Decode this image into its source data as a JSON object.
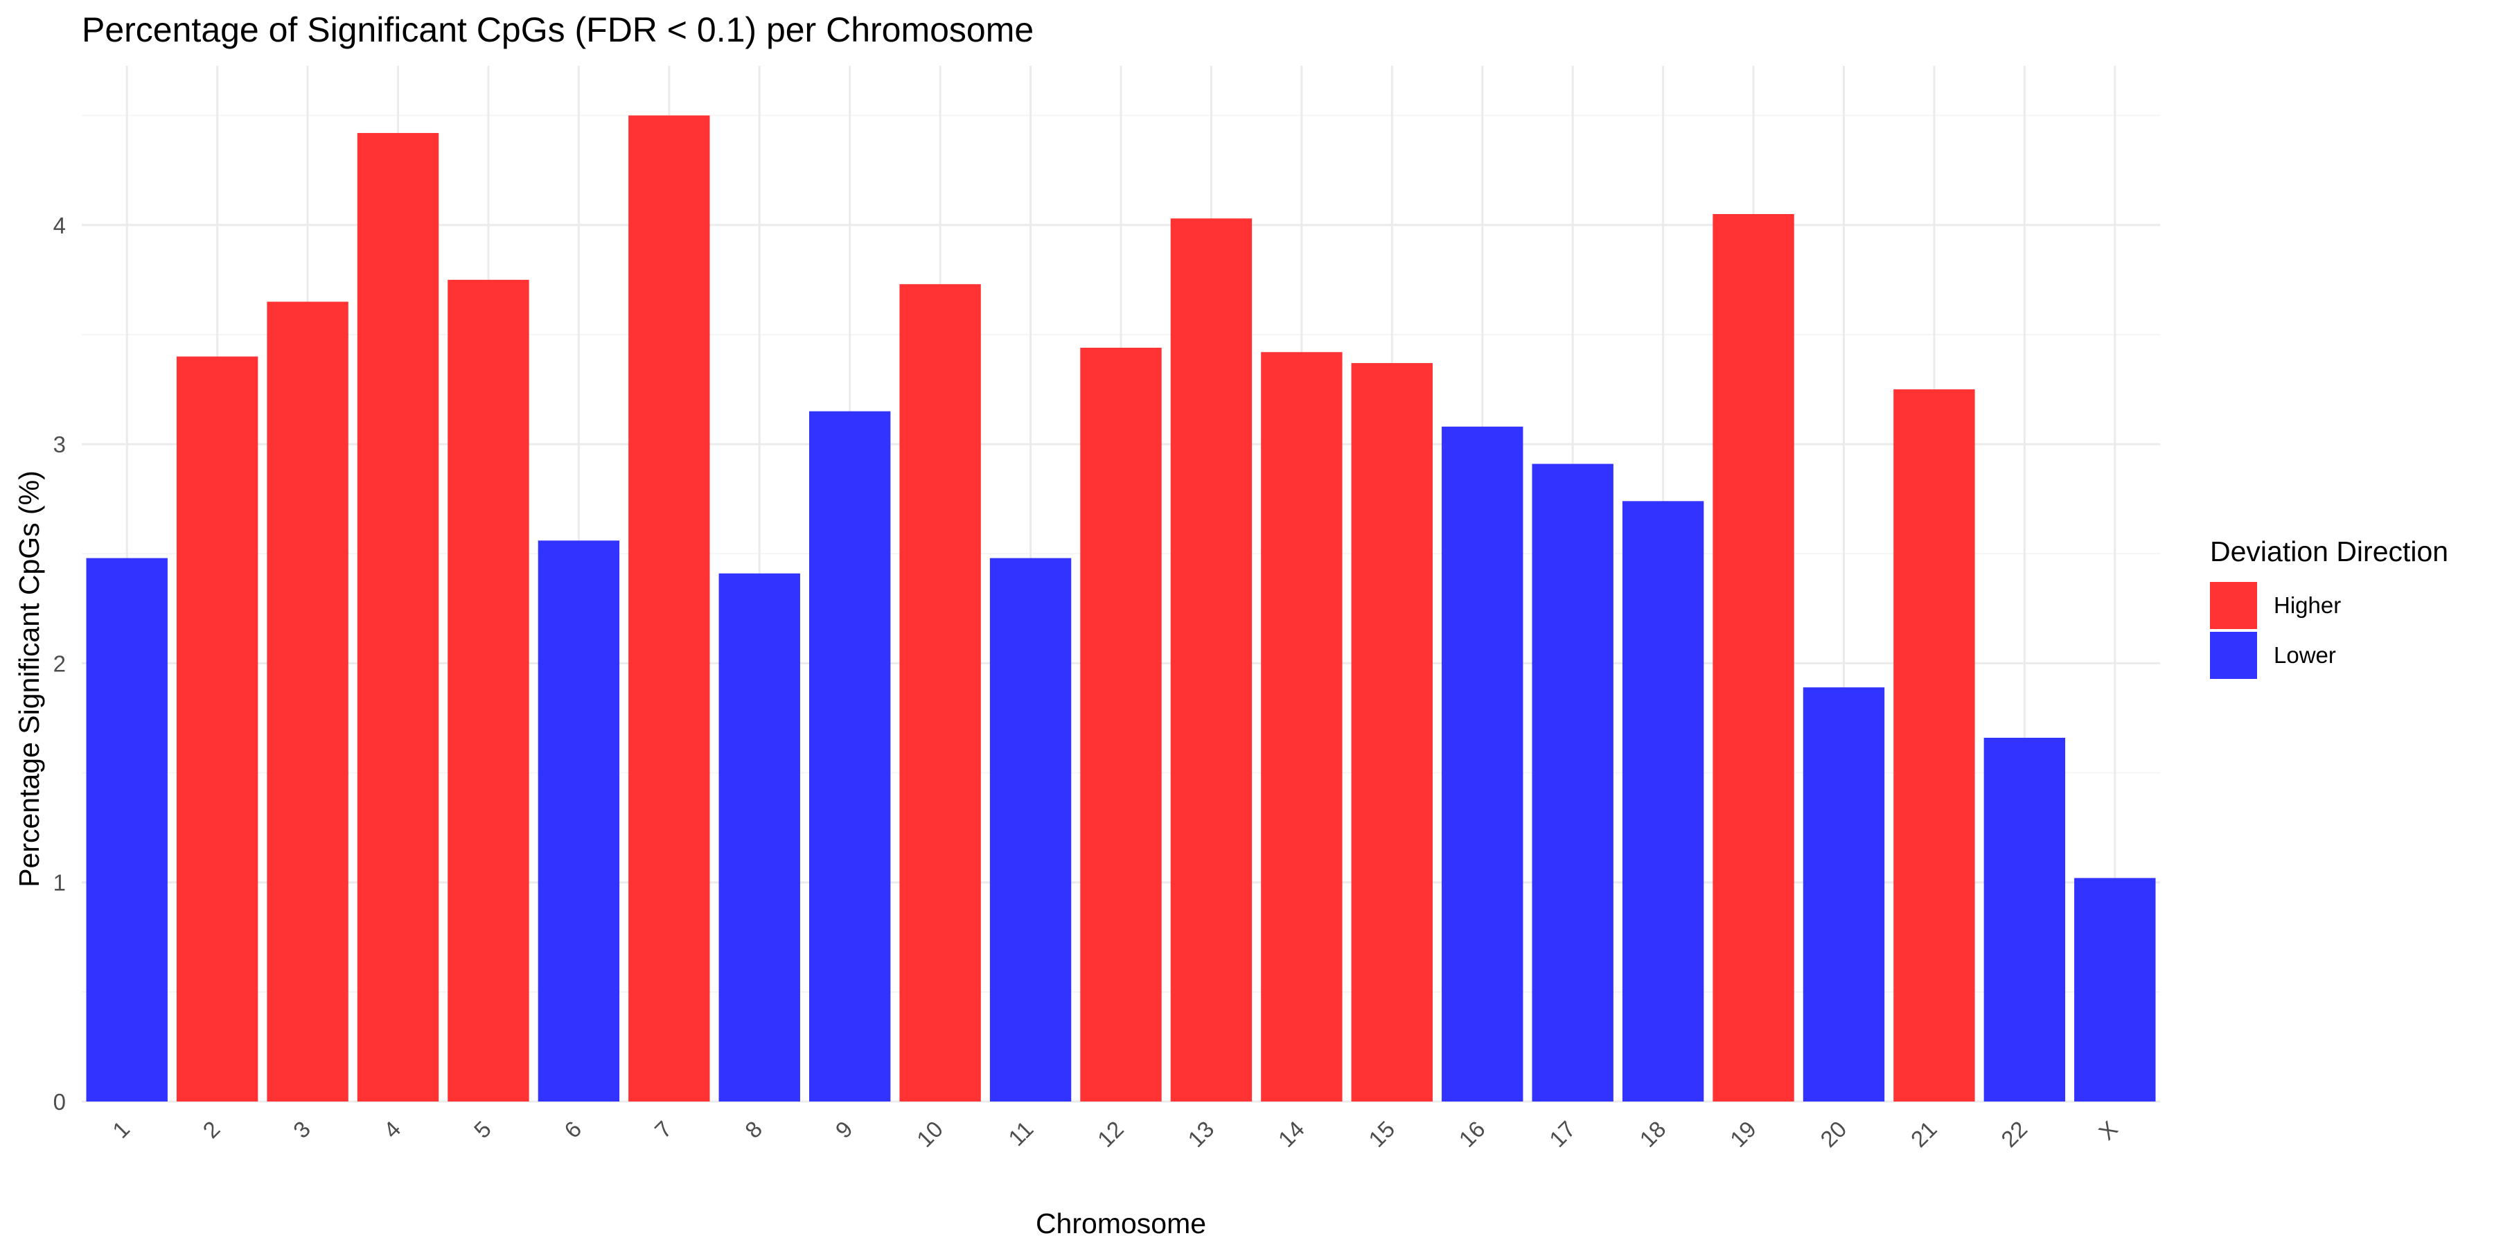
{
  "chart_data": {
    "type": "bar",
    "title": "Percentage of Significant CpGs (FDR < 0.1) per Chromosome",
    "xlabel": "Chromosome",
    "ylabel": "Percentage Significant CpGs (%)",
    "ylim": [
      0,
      4.72
    ],
    "yticks": [
      0,
      1,
      2,
      3,
      4
    ],
    "grid": true,
    "legend_position": "right",
    "legend_title": "Deviation Direction",
    "legend": [
      {
        "label": "Higher",
        "color": "#ff3333"
      },
      {
        "label": "Lower",
        "color": "#3333ff"
      }
    ],
    "categories": [
      "1",
      "2",
      "3",
      "4",
      "5",
      "6",
      "7",
      "8",
      "9",
      "10",
      "11",
      "12",
      "13",
      "14",
      "15",
      "16",
      "17",
      "18",
      "19",
      "20",
      "21",
      "22",
      "X"
    ],
    "values": [
      2.48,
      3.4,
      3.65,
      4.42,
      3.75,
      2.56,
      4.5,
      2.41,
      3.15,
      3.73,
      2.48,
      3.44,
      4.03,
      3.42,
      3.37,
      3.08,
      2.91,
      2.74,
      4.05,
      1.89,
      3.25,
      1.66,
      1.02
    ],
    "direction": [
      "Lower",
      "Higher",
      "Higher",
      "Higher",
      "Higher",
      "Lower",
      "Higher",
      "Lower",
      "Lower",
      "Higher",
      "Lower",
      "Higher",
      "Higher",
      "Higher",
      "Higher",
      "Lower",
      "Lower",
      "Lower",
      "Higher",
      "Lower",
      "Higher",
      "Lower",
      "Lower"
    ]
  }
}
